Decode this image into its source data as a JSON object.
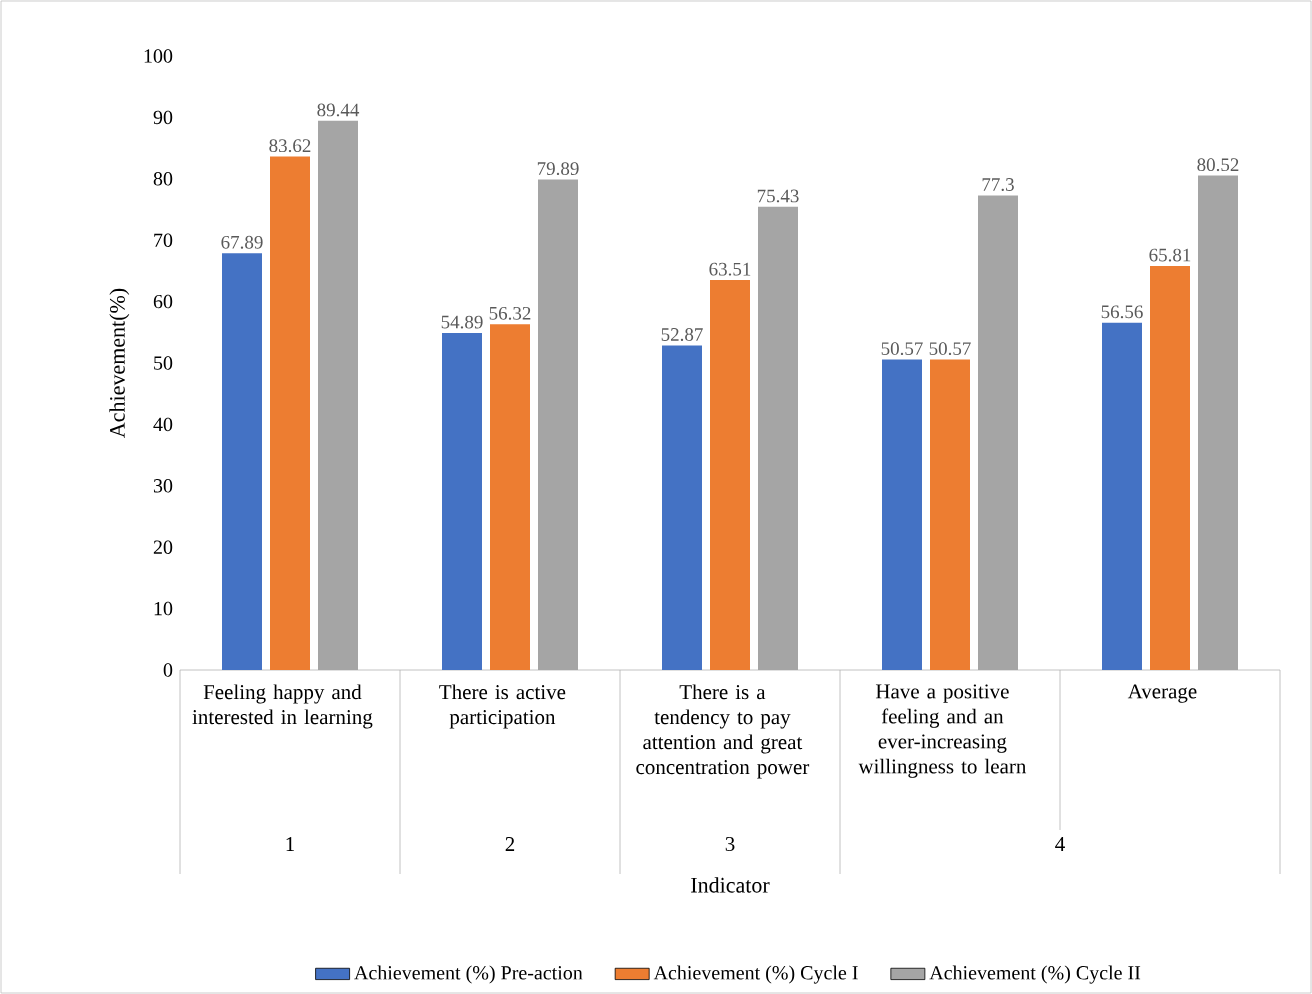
{
  "chart_data": {
    "type": "bar",
    "xlabel": "Indicator",
    "ylabel": "Achievement(%)",
    "categories": [
      "Feeling happy and interested in learning",
      "There is active participation",
      "There is a tendency to pay attention and great concentration power",
      "Have a positive feeling and an ever-increasing willingness to learn",
      "Average"
    ],
    "series": [
      {
        "name": "Achievement (%) Pre-action",
        "color": "#4472c4",
        "values": [
          67.89,
          54.89,
          52.87,
          50.57,
          56.56
        ]
      },
      {
        "name": "Achievement (%) Cycle I",
        "color": "#ed7d31",
        "values": [
          83.62,
          56.32,
          63.51,
          50.57,
          65.81
        ]
      },
      {
        "name": "Achievement (%) Cycle II",
        "color": "#a5a5a5",
        "values": [
          89.44,
          79.89,
          75.43,
          77.3,
          80.52
        ]
      }
    ],
    "annotations": [
      "1",
      "2",
      "3",
      "4"
    ],
    "ylim": [
      0,
      100
    ],
    "yticks": [
      0,
      10,
      20,
      30,
      40,
      50,
      60,
      70,
      80,
      90,
      100
    ],
    "data_labels": true,
    "legend": "bottom"
  }
}
